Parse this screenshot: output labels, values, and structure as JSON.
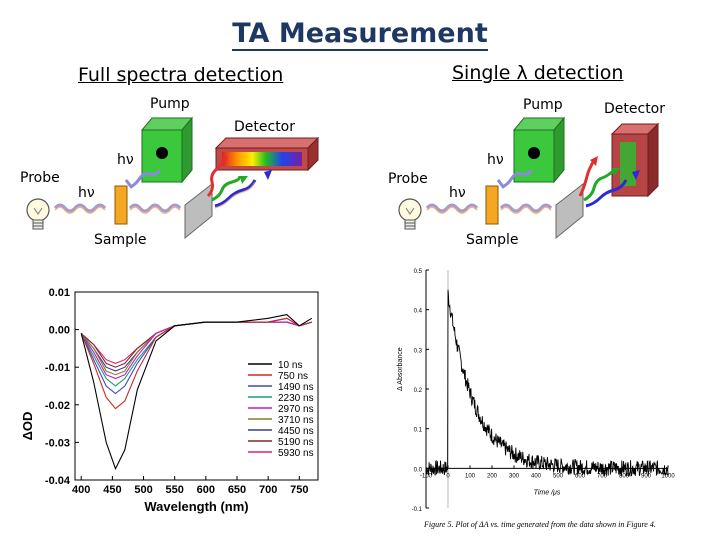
{
  "title": "TA Measurement",
  "left_setup": {
    "heading": "Full spectra detection",
    "pump": "Pump",
    "detector": "Detector",
    "probe": "Probe",
    "hv_pump": "hν",
    "hv_probe": "hν",
    "sample": "Sample"
  },
  "right_setup": {
    "heading": "Single λ detection",
    "pump": "Pump",
    "detector": "Detector",
    "probe": "Probe",
    "hv_pump": "hν",
    "hv_probe": "hν",
    "sample": "Sample"
  },
  "chart_data": [
    {
      "type": "line",
      "xlabel": "Wavelength (nm)",
      "ylabel": "ΔOD",
      "xlim": [
        390,
        780
      ],
      "ylim": [
        -0.04,
        0.01
      ],
      "xticks": [
        "400",
        "450",
        "500",
        "550",
        "600",
        "650",
        "700",
        "750"
      ],
      "yticks": [
        "0.01",
        "0.00",
        "-0.01",
        "-0.02",
        "-0.03",
        "-0.04"
      ],
      "legend_placement": "bottom-right",
      "x": [
        400,
        420,
        440,
        455,
        470,
        490,
        520,
        550,
        600,
        650,
        700,
        730,
        750,
        770
      ],
      "series": [
        {
          "name": "10 ns",
          "color": "#000000",
          "values": [
            -0.001,
            -0.014,
            -0.03,
            -0.037,
            -0.032,
            -0.016,
            -0.003,
            0.001,
            0.002,
            0.002,
            0.003,
            0.004,
            0.001,
            0.003
          ]
        },
        {
          "name": "750 ns",
          "color": "#cc2a2a",
          "values": [
            -0.001,
            -0.009,
            -0.018,
            -0.021,
            -0.019,
            -0.011,
            -0.002,
            0.001,
            0.002,
            0.002,
            0.002,
            0.003,
            0.001,
            0.002
          ]
        },
        {
          "name": "1490 ns",
          "color": "#3b4cc0",
          "values": [
            -0.001,
            -0.008,
            -0.015,
            -0.017,
            -0.015,
            -0.009,
            -0.002,
            0.001,
            0.002,
            0.002,
            0.002,
            0.003,
            0.001,
            0.002
          ]
        },
        {
          "name": "2230 ns",
          "color": "#1b9e77",
          "values": [
            -0.001,
            -0.007,
            -0.013,
            -0.015,
            -0.013,
            -0.008,
            -0.002,
            0.001,
            0.002,
            0.002,
            0.002,
            0.003,
            0.001,
            0.002
          ]
        },
        {
          "name": "2970 ns",
          "color": "#c51bc5",
          "values": [
            -0.001,
            -0.006,
            -0.012,
            -0.013,
            -0.012,
            -0.007,
            -0.001,
            0.001,
            0.002,
            0.002,
            0.002,
            0.002,
            0.001,
            0.002
          ]
        },
        {
          "name": "3710 ns",
          "color": "#8c7a2b",
          "values": [
            -0.001,
            -0.005,
            -0.011,
            -0.012,
            -0.011,
            -0.006,
            -0.001,
            0.001,
            0.002,
            0.002,
            0.002,
            0.002,
            0.001,
            0.002
          ]
        },
        {
          "name": "4450 ns",
          "color": "#3a3a90",
          "values": [
            -0.001,
            -0.005,
            -0.01,
            -0.011,
            -0.01,
            -0.006,
            -0.001,
            0.001,
            0.002,
            0.002,
            0.002,
            0.002,
            0.001,
            0.002
          ]
        },
        {
          "name": "5190 ns",
          "color": "#7f2a2a",
          "values": [
            -0.001,
            -0.004,
            -0.009,
            -0.01,
            -0.009,
            -0.005,
            -0.001,
            0.001,
            0.002,
            0.002,
            0.002,
            0.002,
            0.001,
            0.002
          ]
        },
        {
          "name": "5930 ns",
          "color": "#e0207a",
          "values": [
            -0.001,
            -0.004,
            -0.008,
            -0.009,
            -0.008,
            -0.005,
            -0.001,
            0.001,
            0.002,
            0.002,
            0.002,
            0.002,
            0.001,
            0.002
          ]
        }
      ]
    },
    {
      "type": "line",
      "xlabel": "Time /μs",
      "ylabel": "Δ Absorbance",
      "xlim": [
        -100,
        1000
      ],
      "ylim": [
        -0.1,
        0.5
      ],
      "xticks": [
        "-100",
        "0",
        "100",
        "200",
        "300",
        "400",
        "500",
        "600",
        "700",
        "800",
        "900",
        "1000"
      ],
      "yticks": [
        "0.5",
        "0.4",
        "0.3",
        "0.2",
        "0.1",
        "0.0",
        "-0.1"
      ],
      "peak": 0.44,
      "decay_constant": 120,
      "caption": "Figure 5.  Plot of ΔA vs. time generated from the data shown in Figure 4."
    }
  ]
}
